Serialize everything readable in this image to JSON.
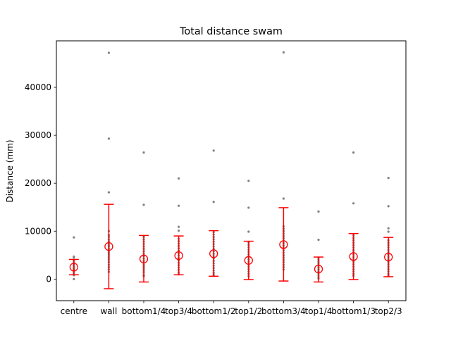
{
  "chart_data": {
    "type": "scatter",
    "title": "Total distance swam",
    "xlabel": "",
    "ylabel": "Distance (mm)",
    "ylim": [
      -4500,
      49700
    ],
    "yticks": [
      0,
      10000,
      20000,
      30000,
      40000
    ],
    "ytick_labels": [
      "0",
      "10000",
      "20000",
      "30000",
      "40000"
    ],
    "grid": false,
    "colors": {
      "points": "#808080",
      "mean_marker": "#ff0000",
      "error_bar": "#ff0000"
    },
    "categories": [
      "centre",
      "wall",
      "bottom1/4",
      "top3/4",
      "bottom1/2",
      "top1/2",
      "bottom3/4",
      "top1/4",
      "bottom1/3",
      "top2/3"
    ],
    "groups": [
      {
        "category": "centre",
        "mean": 2500,
        "err_low": 900,
        "err_high": 4100,
        "points": [
          8700,
          4700,
          4500,
          3900,
          3500,
          3200,
          3000,
          2800,
          2500,
          2300,
          2100,
          1900,
          1500,
          1200,
          800,
          0
        ]
      },
      {
        "category": "wall",
        "mean": 6800,
        "err_low": -2000,
        "err_high": 15600,
        "points": [
          47200,
          29300,
          18100,
          10000,
          9200,
          8800,
          8300,
          7900,
          7500,
          7100,
          6800,
          6400,
          6000,
          5600,
          5200,
          4800,
          4400,
          4000,
          3500,
          3000,
          2500,
          2000,
          1500
        ]
      },
      {
        "category": "bottom1/4",
        "mean": 4200,
        "err_low": -600,
        "err_high": 9100,
        "points": [
          26400,
          15500,
          8800,
          8300,
          7800,
          7300,
          6800,
          6300,
          5800,
          5300,
          4800,
          4300,
          3800,
          3400,
          3000,
          2600,
          2200,
          1800,
          1400,
          900,
          600
        ]
      },
      {
        "category": "top3/4",
        "mean": 4900,
        "err_low": 900,
        "err_high": 9000,
        "points": [
          21000,
          15300,
          10900,
          10100,
          8400,
          7900,
          7400,
          6900,
          6400,
          5900,
          5400,
          4900,
          4400,
          3900,
          3400,
          2900,
          2400,
          1900,
          1400,
          1000
        ]
      },
      {
        "category": "bottom1/2",
        "mean": 5300,
        "err_low": 600,
        "err_high": 10100,
        "points": [
          26800,
          16100,
          9800,
          9300,
          8800,
          8300,
          7800,
          7300,
          6800,
          6300,
          5800,
          5300,
          4800,
          4300,
          3800,
          3300,
          2800,
          2300,
          1800,
          1300,
          900
        ]
      },
      {
        "category": "top1/2",
        "mean": 3900,
        "err_low": -100,
        "err_high": 7900,
        "points": [
          20500,
          14900,
          9900,
          7600,
          7100,
          6600,
          6100,
          5600,
          5100,
          4600,
          4100,
          3600,
          3100,
          2600,
          2100,
          1600,
          1100,
          600
        ]
      },
      {
        "category": "bottom3/4",
        "mean": 7200,
        "err_low": -400,
        "err_high": 14900,
        "points": [
          47300,
          16800,
          11000,
          10500,
          10000,
          9500,
          9000,
          8500,
          8000,
          7500,
          7000,
          6500,
          6000,
          5500,
          5000,
          4500,
          4000,
          3500,
          3000,
          2500,
          2000
        ]
      },
      {
        "category": "top1/4",
        "mean": 2100,
        "err_low": -600,
        "err_high": 4600,
        "points": [
          14100,
          8200,
          4400,
          4000,
          3600,
          3200,
          2800,
          2400,
          2000,
          1600,
          1200,
          800,
          400,
          100
        ]
      },
      {
        "category": "bottom1/3",
        "mean": 4700,
        "err_low": -100,
        "err_high": 9500,
        "points": [
          26400,
          15800,
          9100,
          8600,
          8100,
          7600,
          7100,
          6600,
          6100,
          5600,
          5100,
          4600,
          4100,
          3600,
          3100,
          2600,
          2100,
          1600,
          1100,
          700
        ]
      },
      {
        "category": "top2/3",
        "mean": 4600,
        "err_low": 500,
        "err_high": 8700,
        "points": [
          21100,
          15200,
          10600,
          9900,
          8100,
          7600,
          7100,
          6600,
          6100,
          5600,
          5100,
          4600,
          4100,
          3600,
          3100,
          2600,
          2100,
          1600,
          1100,
          700
        ]
      }
    ]
  }
}
